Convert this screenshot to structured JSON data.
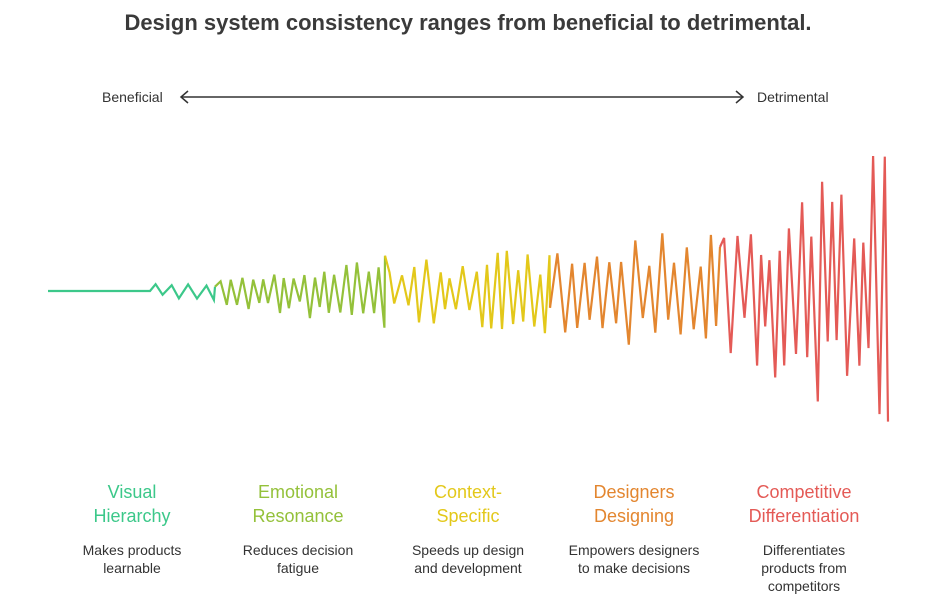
{
  "title": "Design system consistency ranges from beneficial to detrimental.",
  "scale": {
    "left_label": "Beneficial",
    "right_label": "Detrimental"
  },
  "categories": [
    {
      "title_line1": "Visual",
      "title_line2": "Hierarchy",
      "desc_line1": "Makes products",
      "desc_line2": "learnable",
      "desc_line3": "",
      "color": "#3cc88a"
    },
    {
      "title_line1": "Emotional",
      "title_line2": "Resonance",
      "desc_line1": "Reduces decision",
      "desc_line2": "fatigue",
      "desc_line3": "",
      "color": "#94c13a"
    },
    {
      "title_line1": "Context-",
      "title_line2": "Specific",
      "desc_line1": "Speeds up design",
      "desc_line2": "and development",
      "desc_line3": "",
      "color": "#e3c81a"
    },
    {
      "title_line1": "Designers",
      "title_line2": "Designing",
      "desc_line1": "Empowers designers",
      "desc_line2": "to make decisions",
      "desc_line3": "",
      "color": "#e3862f"
    },
    {
      "title_line1": "Competitive",
      "title_line2": "Differentiation",
      "desc_line1": "Differentiates",
      "desc_line2": "products from",
      "desc_line3": "competitors",
      "color": "#e45a56"
    }
  ]
}
